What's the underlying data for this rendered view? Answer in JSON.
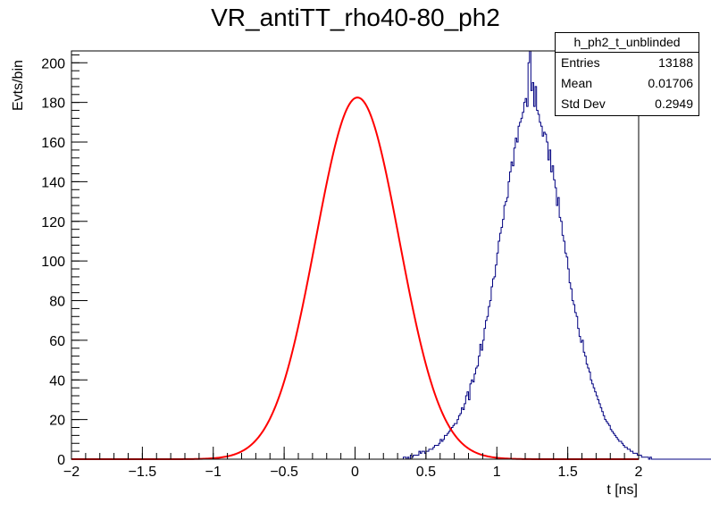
{
  "title": "VR_antiTT_rho40-80_ph2",
  "stats": {
    "name": "h_ph2_t_unblinded",
    "rows": [
      {
        "label": "Entries",
        "value": "13188"
      },
      {
        "label": "Mean",
        "value": "0.01706"
      },
      {
        "label": "Std Dev",
        "value": "0.2949"
      }
    ]
  },
  "chart_data": {
    "type": "histogram",
    "xlabel": "t [ns]",
    "ylabel": "Evts/bin",
    "xlim": [
      -2,
      2
    ],
    "ylim": [
      0,
      206
    ],
    "xticks": [
      -2,
      -1.5,
      -1,
      -0.5,
      0,
      0.5,
      1,
      1.5,
      2
    ],
    "yticks": [
      0,
      20,
      40,
      60,
      80,
      100,
      120,
      140,
      160,
      180,
      200
    ],
    "grid": false,
    "histogram": {
      "bin_width": 0.01,
      "x_start": -2,
      "counts": [
        0,
        0,
        0,
        0,
        0,
        0,
        0,
        0,
        0,
        0,
        0,
        0,
        0,
        0,
        0,
        0,
        0,
        0,
        0,
        0,
        0,
        0,
        0,
        0,
        0,
        0,
        0,
        0,
        0,
        0,
        0,
        0,
        0,
        0,
        0,
        0,
        0,
        0,
        0,
        0,
        0,
        0,
        0,
        0,
        0,
        0,
        0,
        0,
        0,
        0,
        0,
        0,
        0,
        0,
        0,
        0,
        0,
        0,
        0,
        0,
        0,
        0,
        0,
        0,
        0,
        0,
        0,
        0,
        0,
        0,
        0,
        0,
        0,
        0,
        0,
        0,
        0,
        0,
        0,
        0,
        0,
        0,
        0,
        0,
        0,
        0,
        0,
        0,
        0,
        0,
        0,
        0,
        0,
        0,
        0,
        0,
        0,
        0,
        0,
        0,
        0,
        0,
        0,
        0,
        0,
        0,
        0,
        0,
        0,
        0,
        0,
        0,
        0,
        0,
        0,
        0,
        0,
        0,
        0,
        0,
        0,
        0,
        0,
        0,
        0,
        0,
        0,
        0,
        0,
        0,
        0,
        0,
        0,
        0,
        0,
        0,
        0,
        0,
        0,
        0,
        0,
        0,
        0,
        0,
        0,
        0,
        0,
        0,
        0,
        0,
        0,
        0,
        0,
        0,
        0,
        0,
        0,
        0,
        0,
        0,
        0,
        0,
        0,
        0,
        0,
        0,
        0,
        0,
        0,
        0,
        0,
        0,
        0,
        0,
        0,
        0,
        0,
        0,
        0,
        0,
        0,
        0,
        0,
        0,
        0,
        0,
        0,
        0,
        0,
        0,
        0,
        0,
        0,
        0,
        0,
        0,
        0,
        0,
        0,
        0,
        0,
        0,
        0,
        0,
        0,
        0,
        0,
        0,
        0,
        0,
        0,
        0,
        0,
        0,
        0,
        0,
        0,
        0,
        0,
        0,
        0,
        0,
        0,
        0,
        0,
        0,
        0,
        0,
        0,
        0,
        0,
        0,
        0,
        0,
        1,
        1,
        0,
        1,
        0,
        2,
        1,
        2,
        2,
        2,
        2,
        4,
        3,
        4,
        4,
        3,
        4,
        4,
        5,
        5,
        5,
        6,
        7,
        7,
        7,
        8,
        10,
        9,
        10,
        12,
        12,
        13,
        14,
        15,
        16,
        17,
        18,
        18,
        20,
        22,
        23,
        26,
        25,
        28,
        32,
        34,
        30,
        38,
        40,
        39,
        43,
        46,
        47,
        52,
        58,
        55,
        60,
        66,
        70,
        72,
        77,
        80,
        87,
        91,
        92,
        98,
        104,
        110,
        114,
        117,
        121,
        128,
        130,
        132,
        140,
        145,
        150,
        148,
        157,
        162,
        160,
        168,
        170,
        172,
        175,
        180,
        182,
        178,
        200,
        206,
        186,
        190,
        178,
        188,
        176,
        174,
        170,
        168,
        163,
        165,
        164,
        160,
        151,
        156,
        145,
        148,
        141,
        137,
        128,
        132,
        122,
        120,
        113,
        110,
        104,
        102,
        96,
        89,
        86,
        80,
        78,
        74,
        72,
        66,
        62,
        59,
        60,
        54,
        52,
        48,
        46,
        44,
        40,
        38,
        36,
        34,
        32,
        30,
        28,
        26,
        24,
        22,
        20,
        19,
        18,
        17,
        15,
        14,
        13,
        12,
        11,
        10,
        9,
        9,
        8,
        7,
        6,
        6,
        5,
        5,
        4,
        4,
        3,
        3,
        3,
        2,
        2,
        2,
        1,
        1,
        1,
        1,
        1,
        0,
        1,
        0,
        0,
        0,
        0,
        0,
        0,
        0,
        0,
        0,
        0,
        0,
        0,
        0,
        0,
        0,
        0,
        0,
        0,
        0,
        0,
        0,
        0,
        0,
        0,
        0,
        0,
        0,
        0,
        0,
        0,
        0,
        0,
        0,
        0,
        0,
        0,
        0,
        0,
        0,
        0,
        0,
        0,
        0,
        0,
        0,
        0,
        0,
        0,
        0,
        0,
        0,
        0,
        0,
        0,
        0,
        0,
        0,
        0,
        0,
        0,
        0,
        0,
        0,
        0,
        0,
        0,
        0,
        0,
        0,
        0,
        0,
        0,
        0,
        0,
        0,
        0,
        0,
        0,
        0,
        0,
        0,
        0,
        0,
        0,
        0,
        0,
        0,
        0,
        0,
        0,
        0,
        0,
        0,
        0,
        0,
        0,
        0,
        0,
        0,
        0,
        0,
        0,
        0,
        0,
        0,
        0,
        0,
        0,
        0,
        0,
        0,
        0,
        0,
        0,
        0,
        0,
        0,
        0,
        0,
        0,
        0,
        0,
        0,
        0,
        0,
        0,
        0,
        0,
        0,
        0,
        0,
        0,
        0,
        0,
        0,
        0,
        0,
        0,
        0,
        0,
        0,
        0,
        0,
        0,
        0,
        0,
        0,
        0,
        0,
        0,
        0,
        0,
        0,
        0,
        0,
        0,
        0,
        0,
        0,
        0,
        0,
        0,
        0,
        0,
        0,
        0,
        0,
        0,
        0,
        0,
        0,
        0,
        0,
        0,
        0,
        0,
        0,
        0,
        0,
        0,
        0,
        0,
        0,
        0,
        0,
        0,
        0,
        0,
        0,
        0,
        0,
        0,
        0,
        0,
        0,
        0,
        0,
        0,
        0,
        0,
        0,
        0,
        0,
        0,
        0,
        0,
        0,
        0,
        0,
        0,
        0,
        0,
        0,
        0,
        0,
        0,
        0,
        0,
        0,
        0,
        0,
        0,
        0,
        0,
        0
      ],
      "color": "#000080"
    },
    "fit": {
      "function": "gaussian",
      "amplitude": 182.5,
      "mean": 0.01706,
      "sigma": 0.2949,
      "color": "#ff0000"
    }
  }
}
